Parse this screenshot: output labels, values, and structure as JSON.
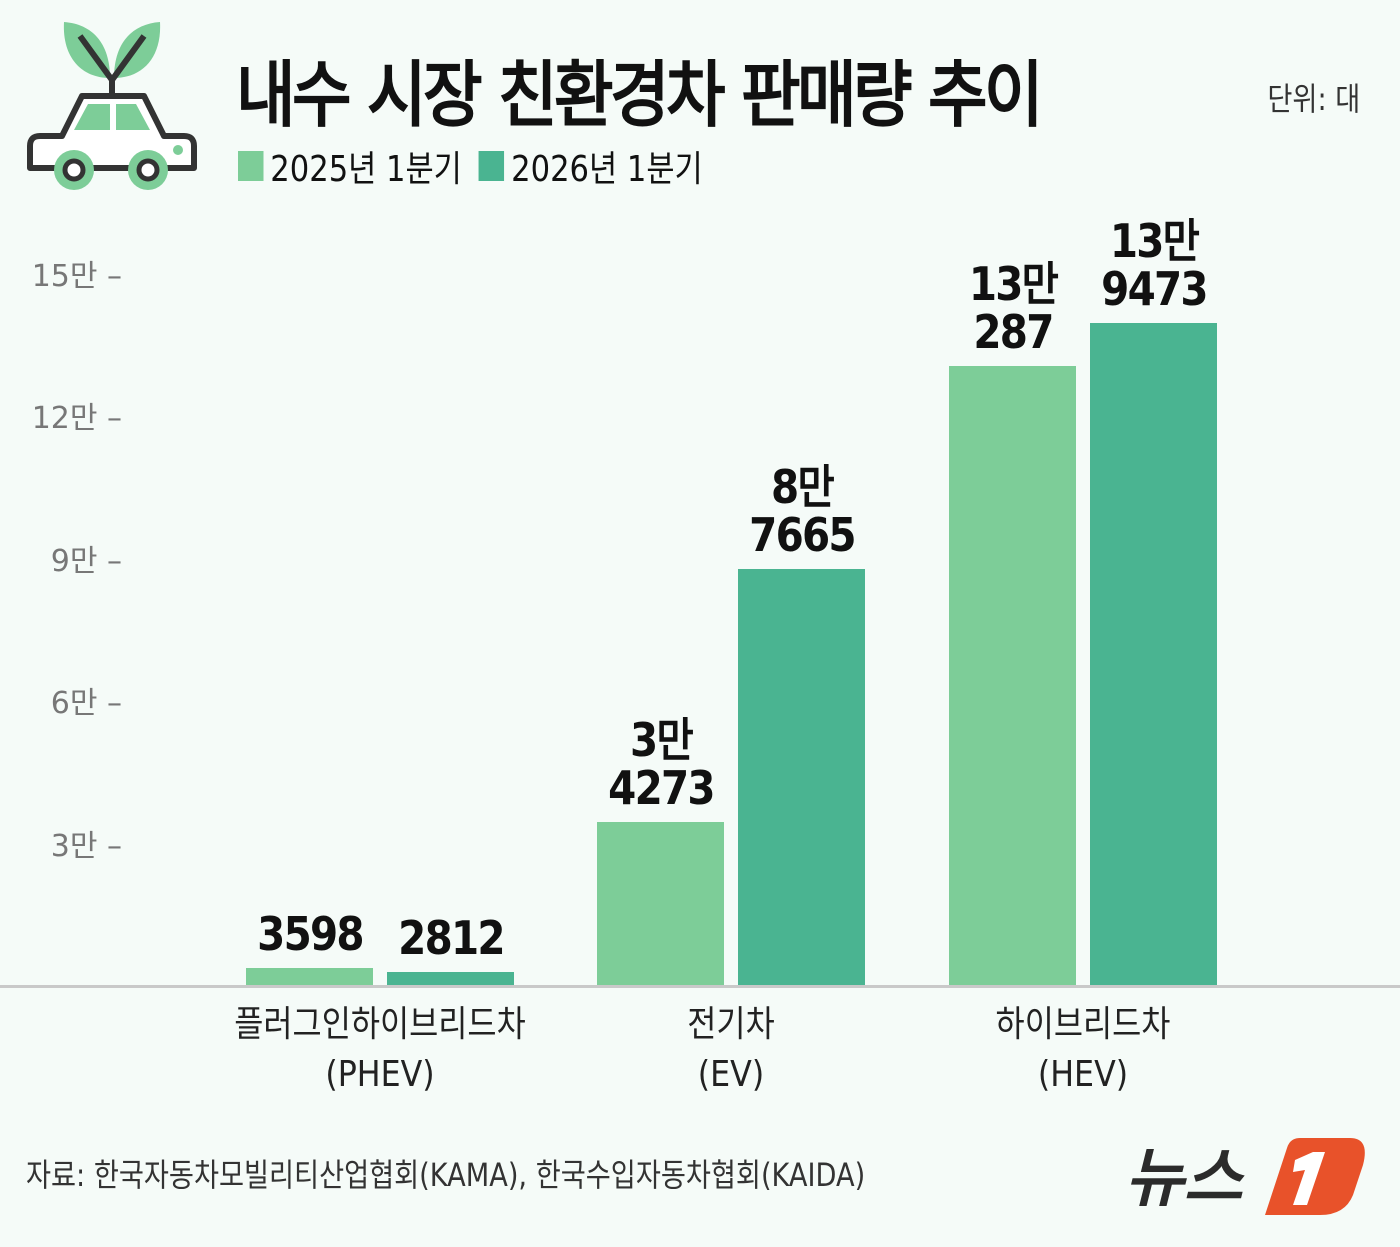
{
  "header": {
    "title": "내수 시장 친환경차 판매량 추이",
    "unit": "단위: 대"
  },
  "source": "자료: 한국자동차모빌리티산업협회(KAMA), 한국수입자동차협회(KAIDA)",
  "logo": {
    "text": "뉴스1"
  },
  "colors": {
    "series_2025": "#7dcd98",
    "series_2026": "#4ab491",
    "background": "#f5fbf8",
    "logo_orange": "#e8522a"
  },
  "chart_data": {
    "type": "bar",
    "title": "내수 시장 친환경차 판매량 추이",
    "unit": "단위: 대",
    "ylim": [
      0,
      150000
    ],
    "yticks": [
      {
        "value": 30000,
        "label": "3만"
      },
      {
        "value": 60000,
        "label": "6만"
      },
      {
        "value": 90000,
        "label": "9만"
      },
      {
        "value": 120000,
        "label": "12만"
      },
      {
        "value": 150000,
        "label": "15만"
      }
    ],
    "legend": "top-left",
    "grid": false,
    "categories": [
      [
        "플러그인하이브리드차",
        "(PHEV)"
      ],
      [
        "전기차",
        "(EV)"
      ],
      [
        "하이브리드차",
        "(HEV)"
      ]
    ],
    "series": [
      {
        "name": "2025년 1분기",
        "values": [
          3598,
          34273,
          130287
        ],
        "labels": [
          [
            "3598"
          ],
          [
            "3만",
            "4273"
          ],
          [
            "13만",
            "287"
          ]
        ]
      },
      {
        "name": "2026년 1분기",
        "values": [
          2812,
          87665,
          139473
        ],
        "labels": [
          [
            "2812"
          ],
          [
            "8만",
            "7665"
          ],
          [
            "13만",
            "9473"
          ]
        ]
      }
    ]
  }
}
